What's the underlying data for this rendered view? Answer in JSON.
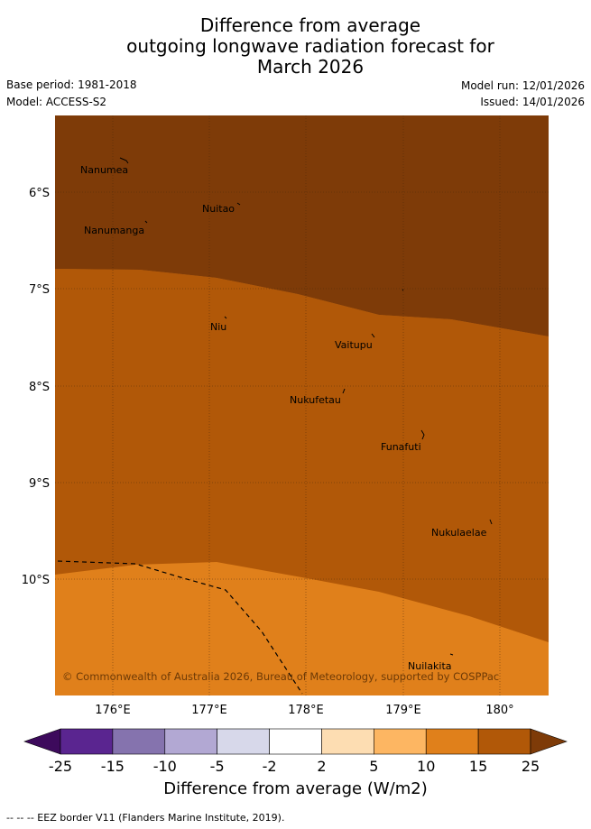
{
  "title": {
    "line1": "Difference from average",
    "line2": "outgoing longwave radiation forecast for",
    "line3": "March 2026"
  },
  "meta": {
    "base_period": "Base period: 1981-2018",
    "model": "Model: ACCESS-S2",
    "model_run": "Model run: 12/01/2026",
    "issued": "Issued: 14/01/2026"
  },
  "map": {
    "lat_labels": [
      "6°S",
      "7°S",
      "8°S",
      "9°S",
      "10°S"
    ],
    "lon_labels": [
      "176°E",
      "177°E",
      "178°E",
      "179°E",
      "180°"
    ],
    "islands": [
      "Nanumea",
      "Nuitao",
      "Nanumanga",
      "Niu",
      "Vaitupu",
      "Nukufetau",
      "Funafuti",
      "Nukulaelae",
      "Nuilakita"
    ],
    "copyright": "© Commonwealth of Australia 2026, Bureau of Meteorology, supported by COSPPac"
  },
  "colorbar": {
    "ticks": [
      "-25",
      "-15",
      "-10",
      "-5",
      "-2",
      "2",
      "5",
      "10",
      "15",
      "25"
    ],
    "colors": [
      "#5a2590",
      "#8573ae",
      "#b2a8d3",
      "#d7d8ea",
      "#ffffff",
      "#fdddb2",
      "#fdb662",
      "#e0801b",
      "#b15808"
    ],
    "extend_low_color": "#3d0a5c",
    "extend_high_color": "#7e3b08",
    "title": "Difference from average (W/m2)"
  },
  "footnote": "--  --  -- EEZ border V11 (Flanders Marine Institute, 2019)."
}
